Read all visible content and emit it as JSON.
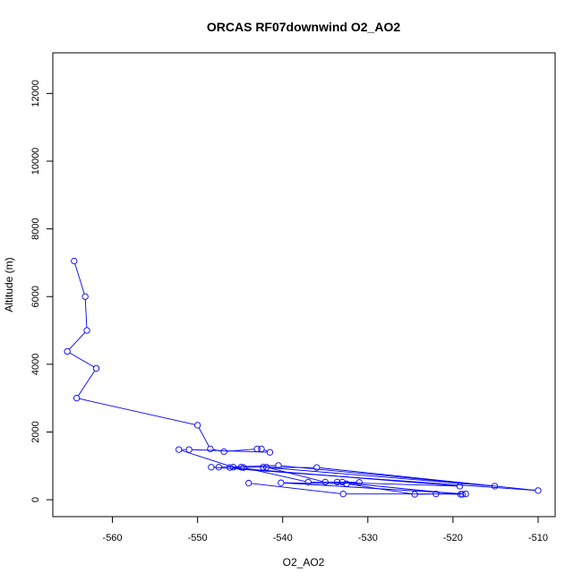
{
  "chart_data": {
    "type": "line",
    "title": "ORCAS RF07downwind O2_AO2",
    "xlabel": "O2_AO2",
    "ylabel": "Altitude (m)",
    "xlim": [
      -567.0,
      -508.0
    ],
    "ylim": [
      -500,
      13200
    ],
    "xticks": [
      -560,
      -550,
      -540,
      -530,
      -520,
      -510
    ],
    "yticks": [
      0,
      2000,
      4000,
      6000,
      8000,
      10000,
      12000
    ],
    "grid": false,
    "legend": "none",
    "colors": {
      "series": "#0000ff",
      "axis": "#000000"
    },
    "series": [
      {
        "points": [
          [
            -564.5,
            7050
          ],
          [
            -563.2,
            6000
          ],
          [
            -563.0,
            5000
          ],
          [
            -565.3,
            4380
          ],
          [
            -561.9,
            3880
          ],
          [
            -564.2,
            3000
          ],
          [
            -550.0,
            2200
          ],
          [
            -548.5,
            1500
          ],
          [
            -546.9,
            1420
          ],
          [
            -543.0,
            1500
          ],
          [
            -542.5,
            1500
          ],
          [
            -541.5,
            1400
          ],
          [
            -551.0,
            1480
          ],
          [
            -552.2,
            1480
          ],
          [
            -545.8,
            960
          ],
          [
            -544.9,
            960
          ],
          [
            -536.0,
            950
          ],
          [
            -510.0,
            270
          ],
          [
            -548.4,
            960
          ],
          [
            -547.5,
            960
          ],
          [
            -540.5,
            1010
          ],
          [
            -515.1,
            400
          ],
          [
            -542.3,
            960
          ],
          [
            -541.9,
            960
          ],
          [
            -535.0,
            520
          ],
          [
            -519.2,
            400
          ],
          [
            -546.2,
            950
          ],
          [
            -544.6,
            950
          ],
          [
            -537.0,
            520
          ],
          [
            -533.0,
            520
          ],
          [
            -531.0,
            510
          ],
          [
            -533.6,
            520
          ],
          [
            -519.1,
            160
          ],
          [
            -518.9,
            160
          ],
          [
            -522.0,
            170
          ],
          [
            -524.5,
            160
          ],
          [
            -532.5,
            470
          ],
          [
            -540.2,
            500
          ],
          [
            -518.5,
            170
          ],
          [
            -532.9,
            170
          ],
          [
            -544.0,
            490
          ]
        ]
      }
    ]
  }
}
